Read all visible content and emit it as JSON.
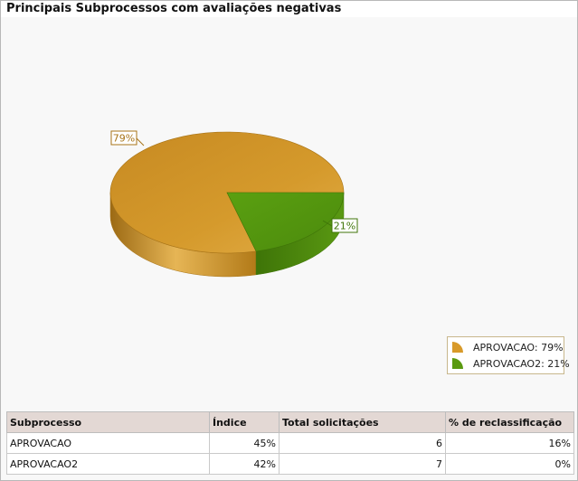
{
  "title": "Principais Subprocessos com avaliações negativas",
  "chart_data": {
    "type": "pie",
    "slices": [
      {
        "label": "APROVACAO",
        "value": 79,
        "color": "#d89a2a",
        "legend": "APROVACAO: 79%",
        "data_label": "79%"
      },
      {
        "label": "APROVACAO2",
        "value": 21,
        "color": "#5a9a10",
        "legend": "APROVACAO2: 21%",
        "data_label": "21%"
      }
    ],
    "legend_position": "bottom-right"
  },
  "table": {
    "headers": [
      "Subprocesso",
      "Índice",
      "Total solicitações",
      "% de reclassificação"
    ],
    "rows": [
      [
        "APROVACAO",
        "45%",
        "6",
        "16%"
      ],
      [
        "APROVACAO2",
        "42%",
        "7",
        "0%"
      ]
    ]
  }
}
